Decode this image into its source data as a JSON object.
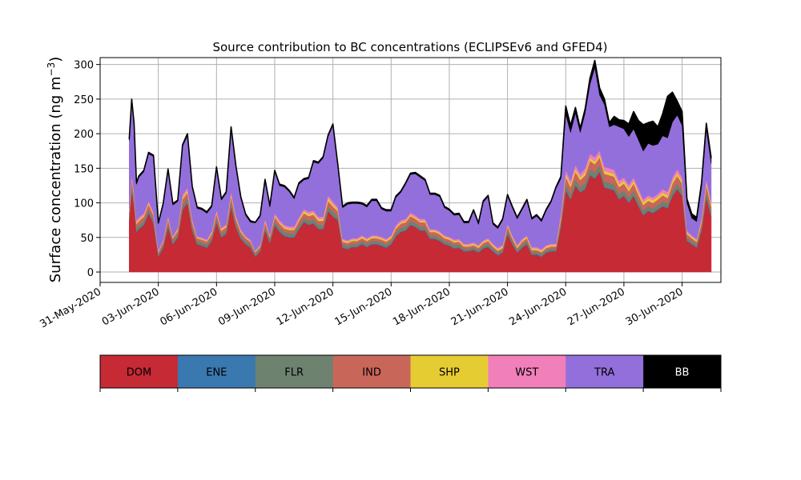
{
  "chart_data": {
    "type": "area",
    "stacked": true,
    "title": "Source contribution to BC concentrations (ECLIPSEv6 and GFED4)",
    "ylabel_main": "Surface concentration (ng m",
    "ylabel_sup": "−3",
    "ylabel_close": ")",
    "xlabel": "",
    "ylim": [
      -15,
      310
    ],
    "xlim": [
      "2020-05-31",
      "2020-07-02"
    ],
    "grid": true,
    "x_ticks": [
      "31-May-2020",
      "03-Jun-2020",
      "06-Jun-2020",
      "09-Jun-2020",
      "12-Jun-2020",
      "15-Jun-2020",
      "18-Jun-2020",
      "21-Jun-2020",
      "24-Jun-2020",
      "27-Jun-2020",
      "30-Jun-2020"
    ],
    "x_tick_dates": [
      "2020-05-31",
      "2020-06-03",
      "2020-06-06",
      "2020-06-09",
      "2020-06-12",
      "2020-06-15",
      "2020-06-18",
      "2020-06-21",
      "2020-06-24",
      "2020-06-27",
      "2020-06-30"
    ],
    "y_ticks": [
      "0",
      "50",
      "100",
      "150",
      "200",
      "250",
      "300"
    ],
    "y_tick_values": [
      0,
      50,
      100,
      150,
      200,
      250,
      300
    ],
    "x": [
      "2020-06-01 12:00",
      "2020-06-01 15:00",
      "2020-06-01 18:00",
      "2020-06-01 21:00",
      "2020-06-02 00:00",
      "2020-06-02 06:00",
      "2020-06-02 12:00",
      "2020-06-02 18:00",
      "2020-06-03 00:00",
      "2020-06-03 06:00",
      "2020-06-03 12:00",
      "2020-06-03 18:00",
      "2020-06-04 00:00",
      "2020-06-04 06:00",
      "2020-06-04 12:00",
      "2020-06-04 18:00",
      "2020-06-05 00:00",
      "2020-06-05 06:00",
      "2020-06-05 12:00",
      "2020-06-05 18:00",
      "2020-06-06 00:00",
      "2020-06-06 06:00",
      "2020-06-06 12:00",
      "2020-06-06 18:00",
      "2020-06-07 00:00",
      "2020-06-07 06:00",
      "2020-06-07 12:00",
      "2020-06-07 18:00",
      "2020-06-08 00:00",
      "2020-06-08 06:00",
      "2020-06-08 12:00",
      "2020-06-08 18:00",
      "2020-06-09 00:00",
      "2020-06-09 06:00",
      "2020-06-09 12:00",
      "2020-06-09 18:00",
      "2020-06-10 00:00",
      "2020-06-10 06:00",
      "2020-06-10 12:00",
      "2020-06-10 18:00",
      "2020-06-11 00:00",
      "2020-06-11 06:00",
      "2020-06-11 12:00",
      "2020-06-11 18:00",
      "2020-06-12 00:00",
      "2020-06-12 06:00",
      "2020-06-12 12:00",
      "2020-06-12 18:00",
      "2020-06-13 00:00",
      "2020-06-13 06:00",
      "2020-06-13 12:00",
      "2020-06-13 18:00",
      "2020-06-14 00:00",
      "2020-06-14 06:00",
      "2020-06-14 12:00",
      "2020-06-14 18:00",
      "2020-06-15 00:00",
      "2020-06-15 06:00",
      "2020-06-15 12:00",
      "2020-06-15 18:00",
      "2020-06-16 00:00",
      "2020-06-16 06:00",
      "2020-06-16 12:00",
      "2020-06-16 18:00",
      "2020-06-17 00:00",
      "2020-06-17 06:00",
      "2020-06-17 12:00",
      "2020-06-17 18:00",
      "2020-06-18 00:00",
      "2020-06-18 06:00",
      "2020-06-18 12:00",
      "2020-06-18 18:00",
      "2020-06-19 00:00",
      "2020-06-19 06:00",
      "2020-06-19 12:00",
      "2020-06-19 18:00",
      "2020-06-20 00:00",
      "2020-06-20 06:00",
      "2020-06-20 12:00",
      "2020-06-20 18:00",
      "2020-06-21 00:00",
      "2020-06-21 06:00",
      "2020-06-21 12:00",
      "2020-06-21 18:00",
      "2020-06-22 00:00",
      "2020-06-22 06:00",
      "2020-06-22 12:00",
      "2020-06-22 18:00",
      "2020-06-23 00:00",
      "2020-06-23 06:00",
      "2020-06-23 12:00",
      "2020-06-23 18:00",
      "2020-06-24 00:00",
      "2020-06-24 06:00",
      "2020-06-24 12:00",
      "2020-06-24 18:00",
      "2020-06-25 00:00",
      "2020-06-25 06:00",
      "2020-06-25 12:00",
      "2020-06-25 18:00",
      "2020-06-26 00:00",
      "2020-06-26 06:00",
      "2020-06-26 12:00",
      "2020-06-26 18:00",
      "2020-06-27 00:00",
      "2020-06-27 06:00",
      "2020-06-27 12:00",
      "2020-06-27 18:00",
      "2020-06-28 00:00",
      "2020-06-28 06:00",
      "2020-06-28 12:00",
      "2020-06-28 18:00",
      "2020-06-29 00:00",
      "2020-06-29 06:00",
      "2020-06-29 12:00",
      "2020-06-29 18:00",
      "2020-06-30 00:00",
      "2020-06-30 06:00",
      "2020-06-30 12:00",
      "2020-06-30 18:00",
      "2020-07-01 00:00",
      "2020-07-01 06:00",
      "2020-07-01 12:00"
    ],
    "series": [
      {
        "name": "DOM",
        "color": "#c52a35",
        "values": [
          75,
          118,
          95,
          58,
          62,
          68,
          85,
          70,
          22,
          35,
          65,
          40,
          50,
          90,
          100,
          60,
          40,
          38,
          35,
          45,
          72,
          50,
          55,
          95,
          65,
          48,
          40,
          35,
          22,
          30,
          60,
          42,
          68,
          58,
          52,
          50,
          50,
          62,
          72,
          68,
          70,
          62,
          62,
          88,
          80,
          75,
          35,
          33,
          36,
          36,
          40,
          36,
          40,
          40,
          38,
          35,
          40,
          52,
          58,
          60,
          68,
          65,
          60,
          60,
          48,
          48,
          45,
          40,
          38,
          34,
          35,
          30,
          30,
          32,
          28,
          34,
          36,
          30,
          24,
          28,
          55,
          40,
          28,
          35,
          40,
          25,
          25,
          22,
          28,
          30,
          30,
          65,
          118,
          105,
          125,
          115,
          120,
          140,
          135,
          145,
          122,
          120,
          118,
          105,
          110,
          100,
          110,
          95,
          82,
          88,
          85,
          90,
          95,
          92,
          110,
          120,
          110,
          45,
          40,
          35,
          60,
          108,
          80
        ]
      },
      {
        "name": "ENE",
        "color": "#3a78b0",
        "values": [
          1,
          1,
          1,
          1,
          1,
          1,
          1,
          1,
          1,
          1,
          1,
          1,
          1,
          1,
          1,
          1,
          1,
          1,
          1,
          1,
          1,
          1,
          1,
          1,
          1,
          1,
          1,
          1,
          1,
          1,
          1,
          1,
          1,
          1,
          1,
          1,
          1,
          1,
          1,
          1,
          1,
          1,
          1,
          1,
          1,
          1,
          1,
          1,
          1,
          1,
          1,
          1,
          1,
          1,
          1,
          1,
          1,
          1,
          1,
          1,
          1,
          1,
          1,
          1,
          1,
          1,
          1,
          1,
          1,
          1,
          1,
          1,
          1,
          1,
          1,
          1,
          1,
          1,
          1,
          1,
          1,
          1,
          1,
          1,
          1,
          1,
          1,
          1,
          1,
          1,
          1,
          1,
          1,
          1,
          1,
          1,
          1,
          1,
          1,
          1,
          1,
          1,
          1,
          1,
          1,
          1,
          1,
          1,
          1,
          1,
          1,
          1,
          1,
          1,
          1,
          1,
          1,
          1,
          1,
          1,
          1,
          1,
          1
        ]
      },
      {
        "name": "FLR",
        "color": "#6e8270",
        "values": [
          5,
          7,
          6,
          5,
          5,
          5,
          5,
          5,
          3,
          4,
          5,
          4,
          4,
          6,
          6,
          5,
          4,
          4,
          4,
          4,
          5,
          4,
          4,
          6,
          5,
          4,
          4,
          4,
          3,
          3,
          5,
          4,
          5,
          5,
          5,
          5,
          5,
          5,
          5,
          5,
          5,
          5,
          5,
          6,
          6,
          5,
          4,
          4,
          4,
          4,
          4,
          4,
          4,
          4,
          4,
          4,
          4,
          5,
          5,
          5,
          5,
          5,
          5,
          5,
          4,
          4,
          4,
          4,
          4,
          4,
          4,
          3,
          3,
          3,
          3,
          3,
          4,
          3,
          3,
          3,
          5,
          4,
          3,
          4,
          4,
          3,
          3,
          3,
          3,
          3,
          3,
          5,
          8,
          7,
          8,
          7,
          8,
          8,
          8,
          8,
          8,
          8,
          8,
          7,
          7,
          7,
          7,
          7,
          6,
          6,
          6,
          6,
          6,
          6,
          7,
          7,
          7,
          4,
          4,
          4,
          5,
          7,
          6
        ]
      },
      {
        "name": "IND",
        "color": "#c9665a",
        "values": [
          6,
          9,
          8,
          6,
          6,
          6,
          7,
          6,
          3,
          4,
          6,
          4,
          5,
          8,
          8,
          6,
          4,
          4,
          4,
          5,
          7,
          5,
          5,
          8,
          6,
          5,
          4,
          4,
          3,
          3,
          6,
          4,
          6,
          6,
          5,
          5,
          5,
          6,
          7,
          7,
          7,
          6,
          6,
          8,
          8,
          7,
          4,
          4,
          4,
          4,
          4,
          4,
          4,
          4,
          4,
          4,
          4,
          5,
          6,
          6,
          7,
          6,
          6,
          6,
          5,
          5,
          5,
          4,
          4,
          4,
          4,
          3,
          3,
          3,
          3,
          4,
          4,
          3,
          3,
          3,
          5,
          4,
          3,
          4,
          4,
          3,
          3,
          3,
          3,
          3,
          3,
          7,
          11,
          10,
          11,
          10,
          11,
          12,
          12,
          12,
          11,
          11,
          11,
          10,
          10,
          9,
          10,
          9,
          8,
          8,
          8,
          8,
          9,
          8,
          10,
          11,
          10,
          5,
          4,
          4,
          6,
          10,
          8
        ]
      },
      {
        "name": "SHP",
        "color": "#e6cc33",
        "values": [
          2,
          3,
          3,
          2,
          2,
          2,
          2,
          2,
          1,
          1,
          2,
          1,
          2,
          3,
          3,
          2,
          1,
          1,
          1,
          2,
          2,
          2,
          2,
          3,
          2,
          2,
          1,
          1,
          1,
          1,
          2,
          1,
          2,
          2,
          2,
          2,
          2,
          2,
          3,
          3,
          3,
          3,
          3,
          4,
          3,
          3,
          2,
          2,
          2,
          2,
          2,
          2,
          2,
          2,
          2,
          2,
          2,
          2,
          2,
          2,
          2,
          2,
          2,
          2,
          2,
          2,
          2,
          2,
          2,
          2,
          2,
          2,
          2,
          2,
          2,
          2,
          2,
          2,
          2,
          2,
          2,
          2,
          2,
          2,
          2,
          2,
          2,
          2,
          2,
          2,
          2,
          3,
          4,
          4,
          4,
          4,
          4,
          4,
          4,
          4,
          4,
          4,
          4,
          4,
          4,
          4,
          4,
          4,
          4,
          4,
          4,
          4,
          4,
          4,
          4,
          4,
          4,
          2,
          2,
          2,
          3,
          4,
          3
        ]
      },
      {
        "name": "WST",
        "color": "#f07fba",
        "values": [
          3,
          4,
          4,
          3,
          3,
          3,
          3,
          3,
          2,
          2,
          3,
          2,
          2,
          4,
          4,
          3,
          2,
          2,
          2,
          2,
          3,
          2,
          2,
          4,
          3,
          2,
          2,
          2,
          1,
          2,
          3,
          2,
          3,
          3,
          3,
          3,
          3,
          3,
          3,
          3,
          3,
          3,
          3,
          4,
          4,
          3,
          2,
          2,
          2,
          2,
          2,
          2,
          2,
          2,
          2,
          2,
          2,
          3,
          3,
          3,
          3,
          3,
          3,
          3,
          2,
          2,
          2,
          2,
          2,
          2,
          2,
          2,
          2,
          2,
          2,
          2,
          2,
          2,
          2,
          2,
          2,
          2,
          2,
          2,
          2,
          2,
          2,
          2,
          2,
          2,
          2,
          4,
          6,
          5,
          6,
          5,
          6,
          6,
          6,
          6,
          6,
          6,
          6,
          5,
          5,
          5,
          5,
          5,
          4,
          4,
          4,
          4,
          5,
          5,
          5,
          6,
          5,
          3,
          2,
          2,
          3,
          5,
          4
        ]
      },
      {
        "name": "TRA",
        "color": "#936fdb",
        "values": [
          98,
          105,
          95,
          52,
          58,
          60,
          68,
          80,
          38,
          50,
          65,
          45,
          38,
          70,
          75,
          45,
          40,
          40,
          38,
          35,
          60,
          40,
          45,
          90,
          70,
          45,
          30,
          25,
          40,
          40,
          55,
          40,
          60,
          50,
          55,
          50,
          40,
          48,
          42,
          48,
          70,
          77,
          85,
          85,
          110,
          60,
          45,
          52,
          50,
          50,
          45,
          45,
          50,
          50,
          40,
          40,
          35,
          40,
          40,
          50,
          55,
          60,
          60,
          55,
          50,
          50,
          50,
          40,
          38,
          35,
          35,
          30,
          30,
          45,
          30,
          55,
          60,
          28,
          28,
          36,
          40,
          40,
          38,
          42,
          50,
          40,
          45,
          40,
          50,
          60,
          80,
          50,
          80,
          70,
          75,
          60,
          80,
          100,
          130,
          80,
          90,
          60,
          65,
          78,
          70,
          70,
          70,
          70,
          70,
          75,
          75,
          72,
          77,
          78,
          80,
          78,
          75,
          40,
          25,
          25,
          45,
          72,
          55
        ]
      },
      {
        "name": "BB",
        "color": "#000000",
        "values": [
          2,
          3,
          3,
          2,
          2,
          2,
          2,
          2,
          1,
          2,
          2,
          2,
          2,
          2,
          3,
          2,
          2,
          2,
          2,
          2,
          2,
          2,
          2,
          3,
          2,
          2,
          2,
          2,
          1,
          2,
          2,
          2,
          2,
          2,
          2,
          2,
          2,
          2,
          2,
          2,
          2,
          2,
          2,
          2,
          2,
          2,
          2,
          2,
          2,
          2,
          2,
          2,
          2,
          2,
          2,
          2,
          2,
          2,
          2,
          2,
          2,
          2,
          2,
          2,
          2,
          2,
          2,
          2,
          2,
          2,
          2,
          2,
          2,
          2,
          2,
          2,
          2,
          2,
          2,
          2,
          2,
          2,
          2,
          2,
          2,
          2,
          2,
          2,
          2,
          2,
          2,
          3,
          12,
          10,
          8,
          6,
          6,
          9,
          10,
          10,
          8,
          6,
          12,
          10,
          12,
          18,
          25,
          28,
          38,
          30,
          35,
          25,
          32,
          60,
          43,
          20,
          20,
          6,
          6,
          6,
          6,
          8,
          8
        ]
      }
    ],
    "legend": {
      "placement": "bottom",
      "labels": [
        "DOM",
        "ENE",
        "FLR",
        "IND",
        "SHP",
        "WST",
        "TRA",
        "BB"
      ],
      "colors": [
        "#c52a35",
        "#3a78b0",
        "#6e8270",
        "#c9665a",
        "#e6cc33",
        "#f07fba",
        "#936fdb",
        "#000000"
      ],
      "text_colors": [
        "#000000",
        "#000000",
        "#000000",
        "#000000",
        "#000000",
        "#000000",
        "#000000",
        "#ffffff"
      ]
    }
  }
}
